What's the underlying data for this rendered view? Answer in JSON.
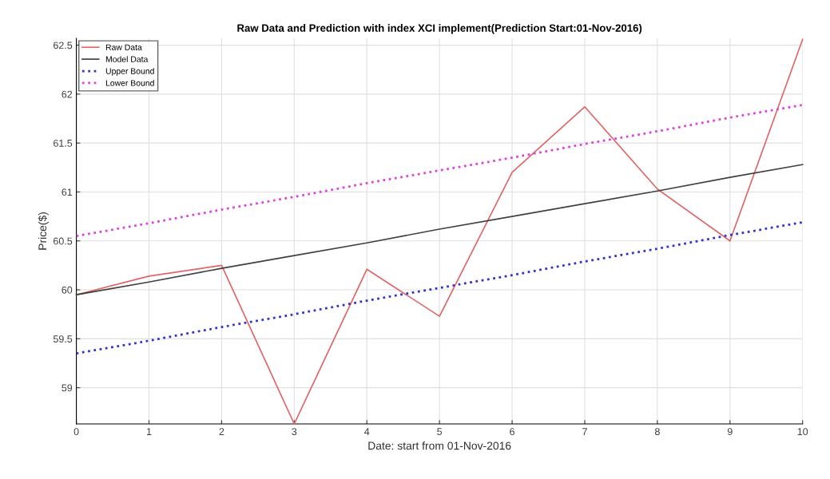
{
  "chart_data": {
    "type": "line",
    "title": "Raw Data and Prediction with index XCI implement(Prediction Start:01-Nov-2016)",
    "xlabel": "Date: start from 01-Nov-2016",
    "ylabel": "Price($)",
    "x": [
      0,
      1,
      2,
      3,
      4,
      5,
      6,
      7,
      8,
      9,
      10
    ],
    "series": [
      {
        "name": "Raw Data",
        "color": "#e06666",
        "values": [
          59.95,
          60.14,
          60.25,
          58.63,
          60.21,
          59.73,
          61.2,
          61.87,
          61.03,
          60.5,
          62.56
        ]
      },
      {
        "name": "Model Data",
        "color": "#404040",
        "values": [
          59.95,
          60.08,
          60.22,
          60.35,
          60.48,
          60.62,
          60.75,
          60.88,
          61.01,
          61.15,
          61.28
        ]
      },
      {
        "name": "Upper Bound",
        "color": "#3333cc",
        "line_style": "dotted",
        "values": [
          59.35,
          59.48,
          59.62,
          59.75,
          59.89,
          60.02,
          60.15,
          60.29,
          60.42,
          60.56,
          60.69
        ]
      },
      {
        "name": "Lower Bound",
        "color": "#dd44dd",
        "line_style": "dotted",
        "values": [
          60.55,
          60.68,
          60.82,
          60.95,
          61.09,
          61.22,
          61.35,
          61.49,
          61.62,
          61.76,
          61.89
        ]
      }
    ],
    "xlim": [
      0,
      10
    ],
    "xticks": [
      0,
      1,
      2,
      3,
      4,
      5,
      6,
      7,
      8,
      9,
      10
    ],
    "ylim": [
      58.63,
      62.57
    ],
    "yticks": [
      59,
      59.5,
      60,
      60.5,
      61,
      61.5,
      62,
      62.5
    ],
    "grid": true,
    "legend": "top left",
    "line_style": "solid"
  }
}
